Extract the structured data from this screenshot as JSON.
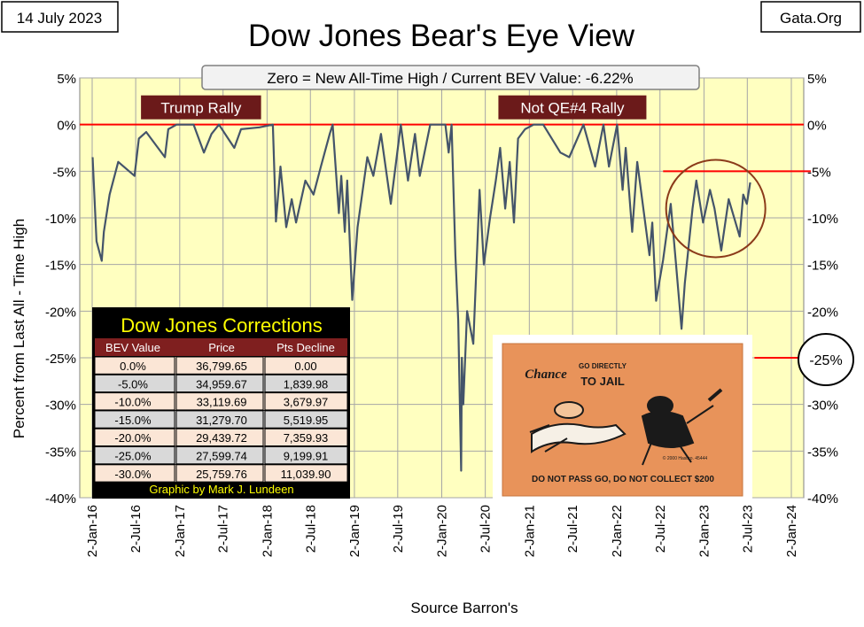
{
  "date_label": "14 July 2023",
  "site_label": "Gata.Org",
  "chart_data": {
    "type": "line",
    "title": "Dow Jones Bear's Eye View",
    "subtitle": "Zero = New All-Time High / Current BEV Value:  -6.22%",
    "xlabel": "Source Barron's",
    "ylabel": "Percent from  Last  All - Time  High",
    "ylim": [
      -40,
      5
    ],
    "y_ticks": [
      "5%",
      "0%",
      "-5%",
      "-10%",
      "-15%",
      "-20%",
      "-25%",
      "-30%",
      "-35%",
      "-40%"
    ],
    "y_tick_values": [
      5,
      0,
      -5,
      -10,
      -15,
      -20,
      -25,
      -30,
      -35,
      -40
    ],
    "x_ticks": [
      "2-Jan-16",
      "2-Jul-16",
      "2-Jan-17",
      "2-Jul-17",
      "2-Jan-18",
      "2-Jul-18",
      "2-Jan-19",
      "2-Jul-19",
      "2-Jan-20",
      "2-Jul-20",
      "2-Jan-21",
      "2-Jul-21",
      "2-Jan-22",
      "2-Jul-22",
      "2-Jan-23",
      "2-Jul-23",
      "2-Jan-24"
    ],
    "x_tick_dates": [
      "2016-01-02",
      "2016-07-02",
      "2017-01-02",
      "2017-07-02",
      "2018-01-02",
      "2018-07-02",
      "2019-01-02",
      "2019-07-02",
      "2020-01-02",
      "2020-07-02",
      "2021-01-02",
      "2021-07-02",
      "2022-01-02",
      "2022-07-02",
      "2023-01-02",
      "2023-07-02",
      "2024-01-02"
    ],
    "grid": true,
    "series": [
      {
        "values": [
          [
            "2016-01-04",
            -3.5
          ],
          [
            "2016-01-20",
            -12.5
          ],
          [
            "2016-02-11",
            -14.6
          ],
          [
            "2016-02-20",
            -11.5
          ],
          [
            "2016-03-15",
            -7.5
          ],
          [
            "2016-04-20",
            -4.0
          ],
          [
            "2016-06-27",
            -5.5
          ],
          [
            "2016-07-15",
            -1.5
          ],
          [
            "2016-08-15",
            -0.8
          ],
          [
            "2016-11-01",
            -3.5
          ],
          [
            "2016-11-15",
            -0.5
          ],
          [
            "2016-12-20",
            0.0
          ],
          [
            "2017-03-01",
            0.0
          ],
          [
            "2017-04-13",
            -3.0
          ],
          [
            "2017-05-15",
            -1.0
          ],
          [
            "2017-06-15",
            0.0
          ],
          [
            "2017-08-18",
            -2.5
          ],
          [
            "2017-09-15",
            -0.5
          ],
          [
            "2017-12-01",
            -0.3
          ],
          [
            "2018-01-26",
            0.0
          ],
          [
            "2018-02-08",
            -10.4
          ],
          [
            "2018-02-27",
            -4.5
          ],
          [
            "2018-03-23",
            -11.0
          ],
          [
            "2018-04-15",
            -8.0
          ],
          [
            "2018-05-03",
            -10.5
          ],
          [
            "2018-06-11",
            -6.0
          ],
          [
            "2018-07-15",
            -7.5
          ],
          [
            "2018-08-15",
            -4.5
          ],
          [
            "2018-09-21",
            -1.0
          ],
          [
            "2018-10-03",
            0.0
          ],
          [
            "2018-10-29",
            -9.5
          ],
          [
            "2018-11-08",
            -5.5
          ],
          [
            "2018-11-23",
            -11.5
          ],
          [
            "2018-12-03",
            -6.0
          ],
          [
            "2018-12-24",
            -18.8
          ],
          [
            "2019-01-15",
            -11.0
          ],
          [
            "2019-02-25",
            -3.5
          ],
          [
            "2019-03-22",
            -5.5
          ],
          [
            "2019-04-23",
            -1.0
          ],
          [
            "2019-06-03",
            -8.5
          ],
          [
            "2019-07-15",
            0.0
          ],
          [
            "2019-08-14",
            -6.0
          ],
          [
            "2019-09-12",
            -1.0
          ],
          [
            "2019-10-02",
            -5.5
          ],
          [
            "2019-11-15",
            0.0
          ],
          [
            "2020-01-17",
            0.0
          ],
          [
            "2020-01-31",
            -3.0
          ],
          [
            "2020-02-12",
            0.0
          ],
          [
            "2020-02-28",
            -14.0
          ],
          [
            "2020-03-11",
            -21.0
          ],
          [
            "2020-03-23",
            -37.1
          ],
          [
            "2020-03-26",
            -25.0
          ],
          [
            "2020-04-01",
            -30.0
          ],
          [
            "2020-04-17",
            -20.0
          ],
          [
            "2020-05-13",
            -23.5
          ],
          [
            "2020-06-08",
            -7.0
          ],
          [
            "2020-06-26",
            -15.0
          ],
          [
            "2020-07-22",
            -10.0
          ],
          [
            "2020-08-15",
            -6.0
          ],
          [
            "2020-09-02",
            -2.5
          ],
          [
            "2020-09-23",
            -9.0
          ],
          [
            "2020-10-12",
            -4.0
          ],
          [
            "2020-10-30",
            -10.5
          ],
          [
            "2020-11-16",
            -1.5
          ],
          [
            "2020-12-15",
            -0.5
          ],
          [
            "2021-01-20",
            0.0
          ],
          [
            "2021-03-01",
            0.0
          ],
          [
            "2021-05-12",
            -3.0
          ],
          [
            "2021-06-18",
            -3.5
          ],
          [
            "2021-08-16",
            0.0
          ],
          [
            "2021-10-04",
            -4.5
          ],
          [
            "2021-11-08",
            0.0
          ],
          [
            "2021-12-01",
            -4.5
          ],
          [
            "2022-01-04",
            0.0
          ],
          [
            "2022-01-27",
            -7.0
          ],
          [
            "2022-02-09",
            -2.5
          ],
          [
            "2022-03-08",
            -11.5
          ],
          [
            "2022-03-29",
            -4.0
          ],
          [
            "2022-05-19",
            -14.0
          ],
          [
            "2022-05-31",
            -10.5
          ],
          [
            "2022-06-16",
            -18.9
          ],
          [
            "2022-07-15",
            -14.5
          ],
          [
            "2022-08-16",
            -8.5
          ],
          [
            "2022-09-07",
            -15.0
          ],
          [
            "2022-09-30",
            -21.9
          ],
          [
            "2022-10-14",
            -17.0
          ],
          [
            "2022-11-15",
            -9.0
          ],
          [
            "2022-12-01",
            -6.0
          ],
          [
            "2022-12-29",
            -10.5
          ],
          [
            "2023-01-27",
            -7.0
          ],
          [
            "2023-02-15",
            -9.0
          ],
          [
            "2023-03-15",
            -13.5
          ],
          [
            "2023-04-15",
            -8.0
          ],
          [
            "2023-05-31",
            -12.0
          ],
          [
            "2023-06-15",
            -7.5
          ],
          [
            "2023-06-30",
            -8.5
          ],
          [
            "2023-07-14",
            -6.2
          ]
        ]
      }
    ],
    "reference_lines": [
      {
        "y": 0,
        "color": "#ff0000"
      },
      {
        "y": -5,
        "color": "#ff0000",
        "from": "2022-07-15"
      },
      {
        "y": -25,
        "color": "#ff0000",
        "from": "2023-08-01"
      }
    ],
    "annotations": [
      {
        "text": "Trump Rally",
        "x": "2017-04-01",
        "y": 1.8
      },
      {
        "text": "Not QE#4 Rally",
        "x": "2021-07-01",
        "y": 1.8
      }
    ],
    "highlight_circle": {
      "center_date": "2023-02-20",
      "center_y": -9.0,
      "color": "#8b3a1a"
    },
    "right_circle_label": "-25%",
    "corrections_table": {
      "title": "Dow Jones Corrections",
      "headers": [
        "BEV Value",
        "Price",
        "Pts Decline"
      ],
      "rows": [
        [
          "0.0%",
          "36,799.65",
          "0.00"
        ],
        [
          "-5.0%",
          "34,959.67",
          "1,839.98"
        ],
        [
          "-10.0%",
          "33,119.69",
          "3,679.97"
        ],
        [
          "-15.0%",
          "31,279.70",
          "5,519.95"
        ],
        [
          "-20.0%",
          "29,439.72",
          "7,359.93"
        ],
        [
          "-25.0%",
          "27,599.74",
          "9,199.91"
        ],
        [
          "-30.0%",
          "25,759.76",
          "11,039.90"
        ]
      ],
      "footer": "Graphic by Mark J. Lundeen"
    },
    "chance_card": {
      "chance": "Chance",
      "go_directly": "GO DIRECTLY",
      "to_jail": "TO JAIL",
      "bottom": "DO NOT PASS GO, DO NOT COLLECT $200"
    }
  }
}
